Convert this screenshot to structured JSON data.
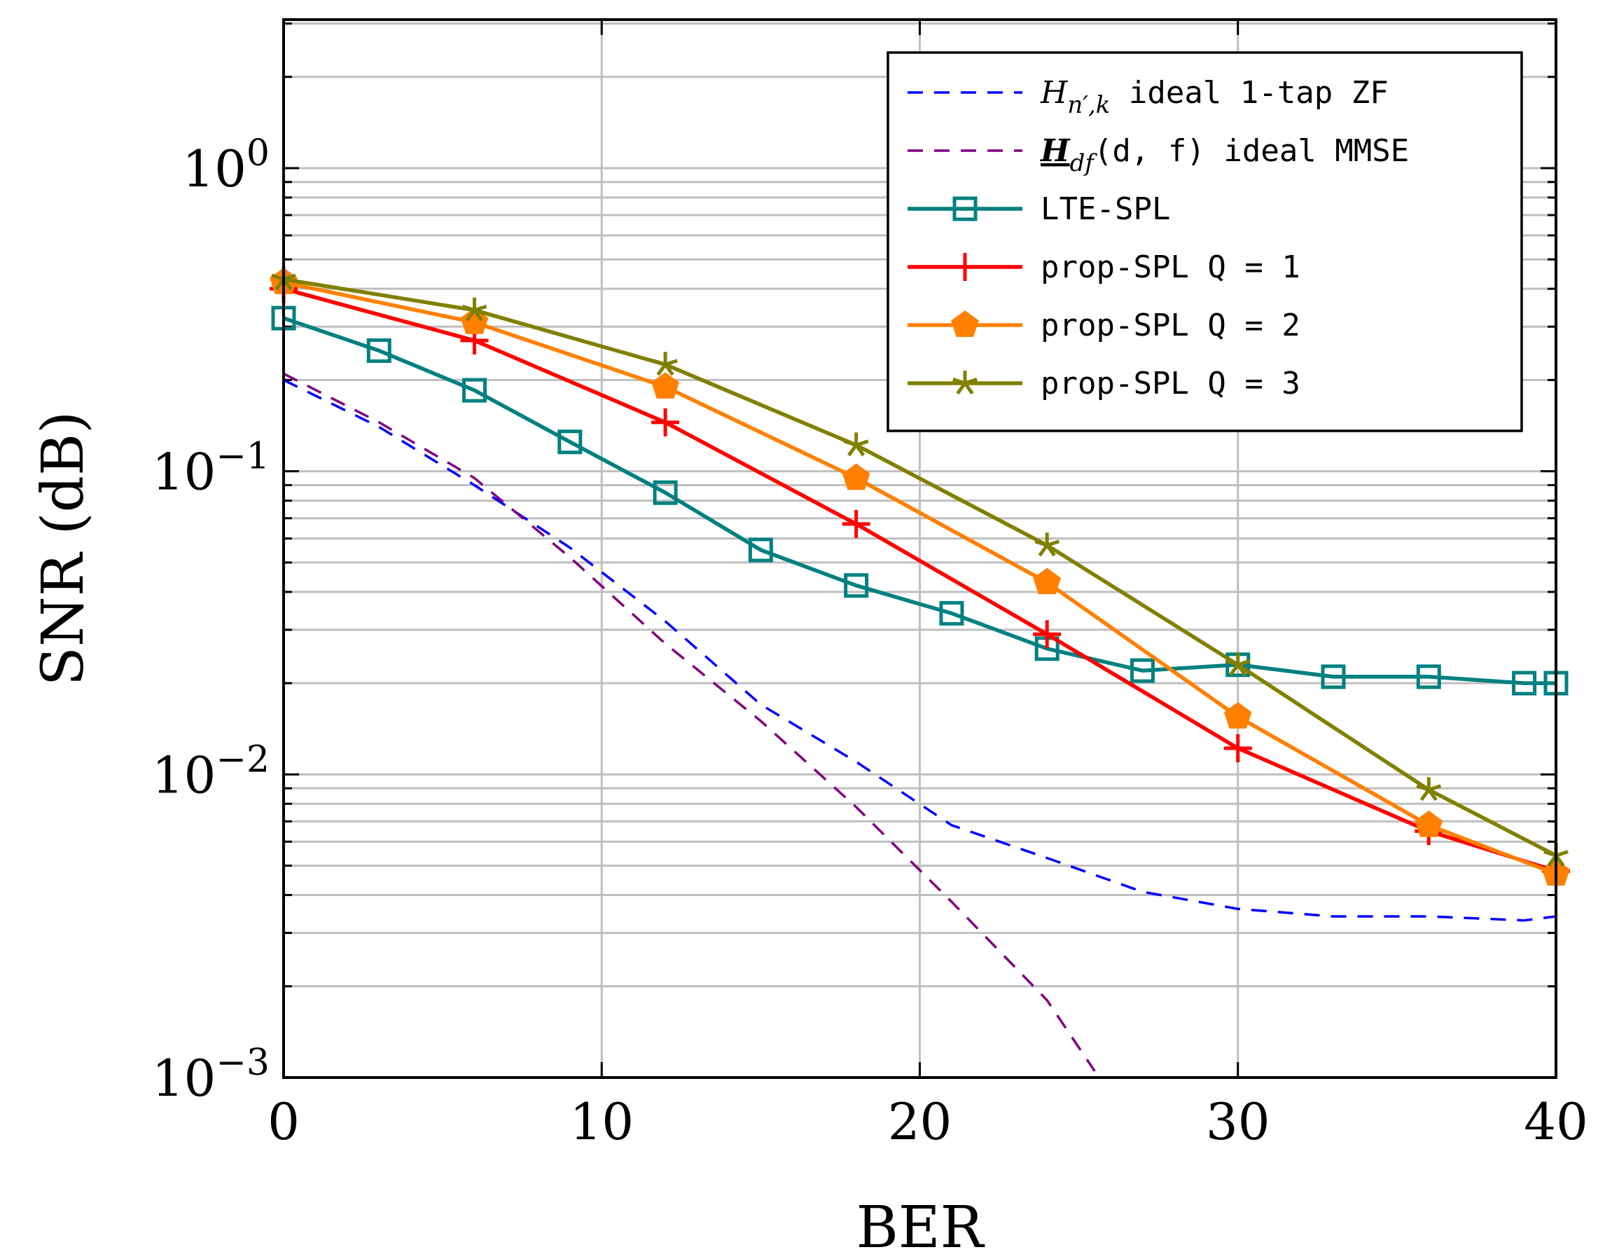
{
  "chart_data": {
    "type": "line",
    "xlabel": "BER",
    "ylabel": "SNR (dB)",
    "xlim": [
      0,
      40
    ],
    "ylim": [
      0.001,
      3
    ],
    "yscale": "log",
    "grid": true,
    "legend_position": "top-right",
    "x_ticks": [
      {
        "value": 0,
        "label": "0"
      },
      {
        "value": 10,
        "label": "10"
      },
      {
        "value": 20,
        "label": "20"
      },
      {
        "value": 30,
        "label": "30"
      },
      {
        "value": 40,
        "label": "40"
      }
    ],
    "y_ticks": [
      {
        "value": 1,
        "base": "10",
        "exp": "0"
      },
      {
        "value": 0.1,
        "base": "10",
        "exp": "−1"
      },
      {
        "value": 0.01,
        "base": "10",
        "exp": "−2"
      },
      {
        "value": 0.001,
        "base": "10",
        "exp": "−3"
      }
    ],
    "series": [
      {
        "name": "H_{n′,k} ideal 1-tap ZF",
        "legend": {
          "main": "H",
          "sub": "n′,k",
          "rest": " ideal 1-tap ZF"
        },
        "color": "#0000ff",
        "style": "dashed",
        "marker": "none",
        "x": [
          0,
          3,
          6,
          9,
          12,
          15,
          18,
          21,
          24,
          27,
          30,
          33,
          36,
          39,
          40
        ],
        "y": [
          0.2,
          0.14,
          0.09,
          0.056,
          0.032,
          0.017,
          0.011,
          0.0068,
          0.0053,
          0.0041,
          0.0036,
          0.0034,
          0.0034,
          0.0033,
          0.0034
        ]
      },
      {
        "name": "H_df(d, f) ideal MMSE",
        "legend": {
          "main": "H",
          "sub": "df",
          "rest": "(d, f) ideal MMSE"
        },
        "color": "#800080",
        "style": "dashed",
        "marker": "none",
        "x": [
          0,
          3,
          6,
          9,
          12,
          15,
          18,
          21,
          24,
          25.5
        ],
        "y": [
          0.21,
          0.145,
          0.095,
          0.052,
          0.027,
          0.015,
          0.0078,
          0.0038,
          0.0018,
          0.00105
        ]
      },
      {
        "name": "LTE-SPL",
        "color": "#008080",
        "style": "solid",
        "marker": "square",
        "x": [
          0,
          3,
          6,
          9,
          12,
          15,
          18,
          21,
          24,
          27,
          30,
          33,
          36,
          39,
          40
        ],
        "y": [
          0.32,
          0.25,
          0.185,
          0.125,
          0.085,
          0.055,
          0.042,
          0.034,
          0.026,
          0.022,
          0.023,
          0.021,
          0.021,
          0.02,
          0.02
        ]
      },
      {
        "name": "prop-SPL Q = 1",
        "color": "#ff0000",
        "style": "solid",
        "marker": "plus",
        "x": [
          0,
          6,
          12,
          18,
          24,
          30,
          36,
          40
        ],
        "y": [
          0.4,
          0.27,
          0.145,
          0.067,
          0.029,
          0.0122,
          0.0065,
          0.0048
        ]
      },
      {
        "name": "prop-SPL Q = 2",
        "color": "#ff8000",
        "style": "solid",
        "marker": "pentagon",
        "x": [
          0,
          6,
          12,
          18,
          24,
          30,
          36,
          40
        ],
        "y": [
          0.42,
          0.31,
          0.19,
          0.095,
          0.043,
          0.0155,
          0.0068,
          0.0047
        ]
      },
      {
        "name": "prop-SPL Q = 3",
        "color": "#808000",
        "style": "solid",
        "marker": "star",
        "x": [
          0,
          6,
          12,
          18,
          24,
          30,
          36,
          40
        ],
        "y": [
          0.43,
          0.34,
          0.225,
          0.122,
          0.057,
          0.023,
          0.0089,
          0.0054
        ]
      }
    ]
  }
}
